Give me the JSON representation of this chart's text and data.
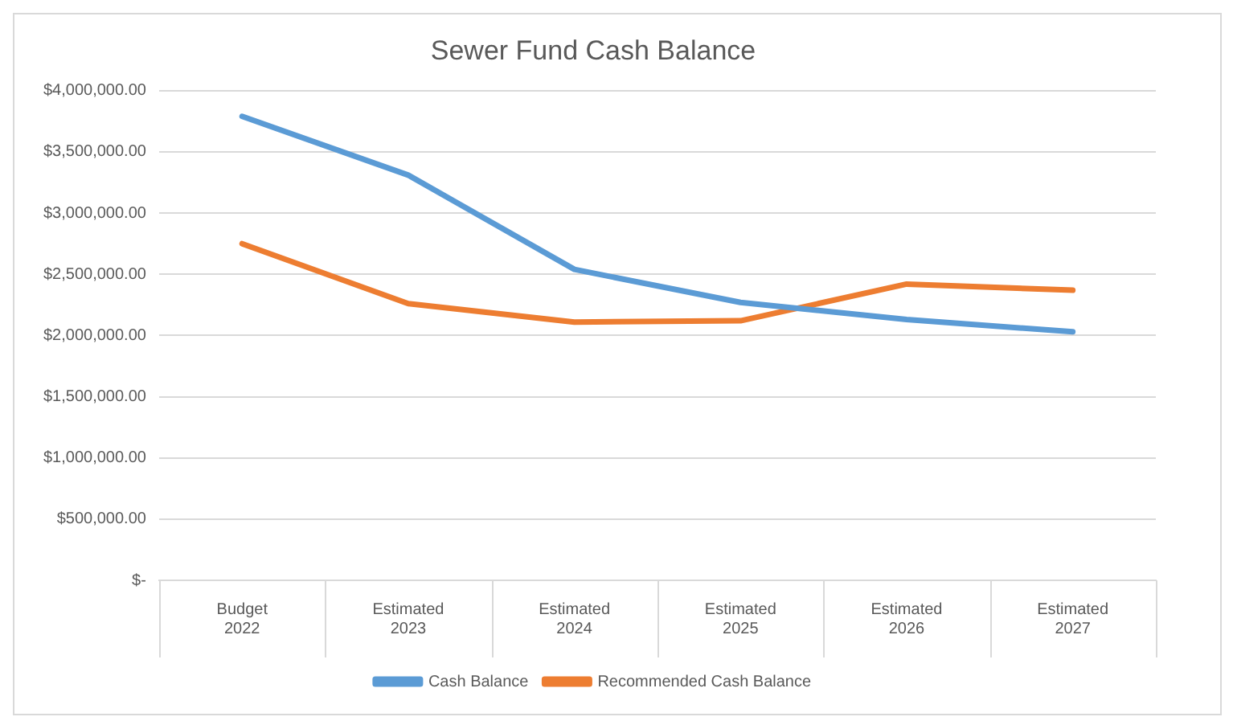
{
  "chart_data": {
    "type": "line",
    "title": "Sewer Fund Cash Balance",
    "categories": [
      "Budget\n2022",
      "Estimated\n2023",
      "Estimated\n2024",
      "Estimated\n2025",
      "Estimated\n2026",
      "Estimated\n2027"
    ],
    "series": [
      {
        "name": "Cash Balance",
        "color": "#5b9bd5",
        "values": [
          3790000,
          3310000,
          2540000,
          2270000,
          2130000,
          2030000
        ]
      },
      {
        "name": "Recommended Cash Balance",
        "color": "#ed7d31",
        "values": [
          2750000,
          2260000,
          2110000,
          2120000,
          2420000,
          2370000
        ]
      }
    ],
    "ylim": [
      0,
      4000000
    ],
    "yticks": [
      {
        "value": 0,
        "label": "$-"
      },
      {
        "value": 500000,
        "label": "$500,000.00"
      },
      {
        "value": 1000000,
        "label": "$1,000,000.00"
      },
      {
        "value": 1500000,
        "label": "$1,500,000.00"
      },
      {
        "value": 2000000,
        "label": "$2,000,000.00"
      },
      {
        "value": 2500000,
        "label": "$2,500,000.00"
      },
      {
        "value": 3000000,
        "label": "$3,000,000.00"
      },
      {
        "value": 3500000,
        "label": "$3,500,000.00"
      },
      {
        "value": 4000000,
        "label": "$4,000,000.00"
      }
    ],
    "grid": "y",
    "legend": "bottom",
    "marker": "none",
    "line_style": "solid"
  }
}
